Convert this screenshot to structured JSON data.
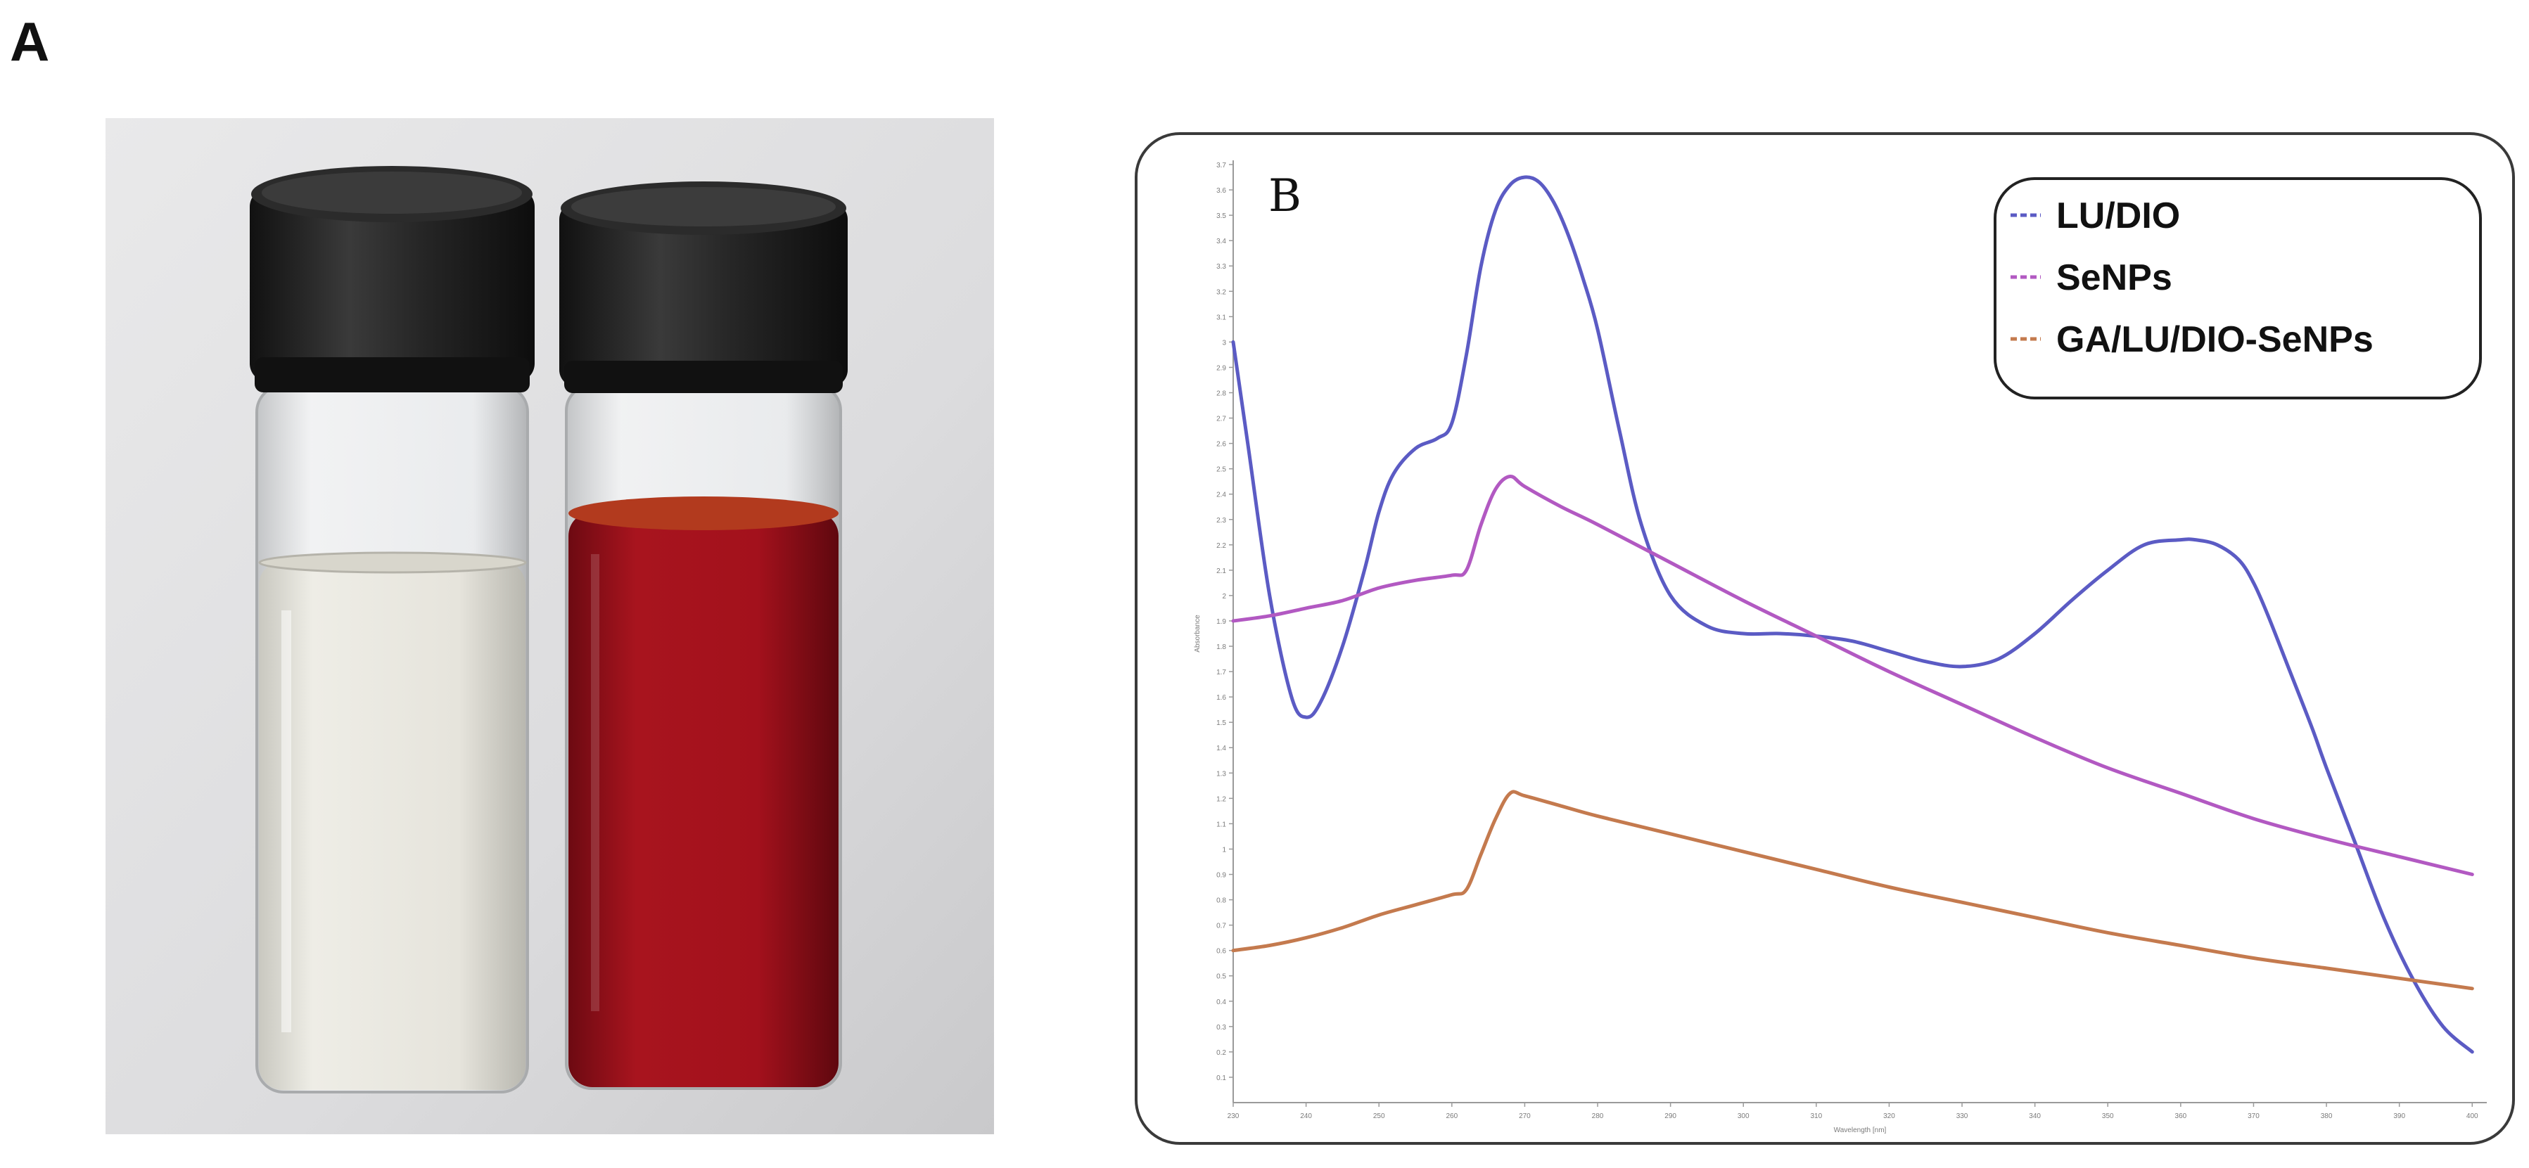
{
  "figure": {
    "panel_a_label": "A",
    "panel_b_label": "B"
  },
  "photo": {
    "description_icon": "two-vials-photo-icon",
    "left_vial_color": "#ece9df",
    "right_vial_color": "#a3111c",
    "cap_color": "#1c1c1c"
  },
  "chart_data": {
    "type": "line",
    "title": "",
    "xlabel": "Wavelength [nm]",
    "ylabel": "Absorbance",
    "xlim": [
      230,
      402
    ],
    "ylim": [
      0,
      3.7
    ],
    "xticks": [
      230,
      240,
      250,
      260,
      270,
      280,
      290,
      300,
      310,
      320,
      330,
      340,
      350,
      360,
      370,
      380,
      390,
      400
    ],
    "yticks": [
      0.1,
      0.2,
      0.3,
      0.4,
      0.5,
      0.6,
      0.7,
      0.8,
      0.9,
      1,
      1.1,
      1.2,
      1.3,
      1.4,
      1.5,
      1.6,
      1.7,
      1.8,
      1.9,
      2,
      2.1,
      2.2,
      2.3,
      2.4,
      2.5,
      2.6,
      2.7,
      2.8,
      2.9,
      3,
      3.1,
      3.2,
      3.3,
      3.4,
      3.5,
      3.6,
      3.7
    ],
    "grid": false,
    "legend_position": "top-right",
    "series": [
      {
        "name": "LU/DIO",
        "color": "#5b5bc4",
        "x": [
          230,
          232,
          235,
          238,
          240,
          242,
          245,
          248,
          250,
          252,
          255,
          258,
          260,
          262,
          264,
          266,
          268,
          270,
          272,
          274,
          276,
          278,
          280,
          283,
          286,
          290,
          295,
          300,
          305,
          310,
          315,
          320,
          325,
          330,
          335,
          340,
          345,
          350,
          355,
          360,
          362,
          365,
          368,
          370,
          372,
          375,
          378,
          380,
          384,
          388,
          392,
          396,
          400
        ],
        "y": [
          3.0,
          2.6,
          2.0,
          1.6,
          1.52,
          1.58,
          1.8,
          2.1,
          2.33,
          2.48,
          2.58,
          2.62,
          2.68,
          2.95,
          3.3,
          3.52,
          3.62,
          3.65,
          3.63,
          3.55,
          3.42,
          3.25,
          3.05,
          2.65,
          2.28,
          2.0,
          1.88,
          1.85,
          1.85,
          1.84,
          1.82,
          1.78,
          1.74,
          1.72,
          1.75,
          1.85,
          1.98,
          2.1,
          2.2,
          2.22,
          2.22,
          2.2,
          2.14,
          2.05,
          1.92,
          1.7,
          1.48,
          1.32,
          1.02,
          0.72,
          0.48,
          0.3,
          0.2
        ]
      },
      {
        "name": "SeNPs",
        "color": "#b259c2",
        "x": [
          230,
          235,
          240,
          245,
          250,
          255,
          260,
          262,
          264,
          266,
          268,
          270,
          275,
          280,
          290,
          300,
          310,
          320,
          330,
          340,
          350,
          360,
          370,
          380,
          390,
          400
        ],
        "y": [
          1.9,
          1.92,
          1.95,
          1.98,
          2.03,
          2.06,
          2.08,
          2.1,
          2.28,
          2.42,
          2.47,
          2.43,
          2.35,
          2.28,
          2.13,
          1.98,
          1.84,
          1.7,
          1.57,
          1.44,
          1.32,
          1.22,
          1.12,
          1.04,
          0.97,
          0.9
        ]
      },
      {
        "name": "GA/LU/DIO-SeNPs",
        "color": "#c47a4e",
        "x": [
          230,
          235,
          240,
          245,
          250,
          255,
          260,
          262,
          264,
          266,
          268,
          270,
          275,
          280,
          290,
          300,
          310,
          320,
          330,
          340,
          350,
          360,
          370,
          380,
          390,
          400
        ],
        "y": [
          0.6,
          0.62,
          0.65,
          0.69,
          0.74,
          0.78,
          0.82,
          0.84,
          0.98,
          1.12,
          1.22,
          1.21,
          1.17,
          1.13,
          1.06,
          0.99,
          0.92,
          0.85,
          0.79,
          0.73,
          0.67,
          0.62,
          0.57,
          0.53,
          0.49,
          0.45
        ]
      }
    ]
  }
}
